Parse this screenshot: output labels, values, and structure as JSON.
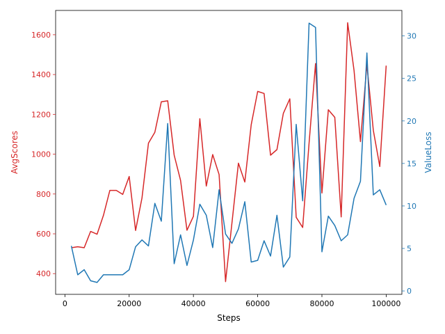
{
  "chart_data": {
    "type": "line",
    "title": "",
    "xlabel": "Steps",
    "ylabel_left": "AvgScores",
    "ylabel_right": "ValueLoss",
    "xlim": [
      -2890,
      104890
    ],
    "ylim_left": [
      296,
      1722
    ],
    "ylim_right": [
      -0.4,
      33.0
    ],
    "x_ticks": [
      0,
      20000,
      40000,
      60000,
      80000,
      100000
    ],
    "x_tick_labels": [
      "0",
      "20000",
      "40000",
      "60000",
      "80000",
      "100000"
    ],
    "y_left_ticks": [
      400,
      600,
      800,
      1000,
      1200,
      1400,
      1600
    ],
    "y_left_tick_labels": [
      "400",
      "600",
      "800",
      "1000",
      "1200",
      "1400",
      "1600"
    ],
    "y_right_ticks": [
      0,
      5,
      10,
      15,
      20,
      25,
      30
    ],
    "y_right_tick_labels": [
      "0",
      "5",
      "10",
      "15",
      "20",
      "25",
      "30"
    ],
    "grid": false,
    "legend": "none",
    "colors": {
      "left": "#d62728",
      "right": "#1f77b4",
      "axis": "#000000"
    },
    "x": [
      2000,
      4000,
      6000,
      8000,
      10000,
      12000,
      14000,
      16000,
      18000,
      20000,
      22000,
      24000,
      26000,
      28000,
      30000,
      32000,
      34000,
      36000,
      38000,
      40000,
      42000,
      44000,
      46000,
      48000,
      50000,
      52000,
      54000,
      56000,
      58000,
      60000,
      62000,
      64000,
      66000,
      68000,
      70000,
      72000,
      74000,
      76000,
      78000,
      80000,
      82000,
      84000,
      86000,
      88000,
      90000,
      92000,
      94000,
      96000,
      98000,
      100000
    ],
    "series": [
      {
        "axis": "left",
        "values": [
          530,
          535,
          530,
          612,
          598,
          693,
          818,
          818,
          798,
          888,
          617,
          780,
          1055,
          1110,
          1263,
          1268,
          995,
          868,
          618,
          688,
          1178,
          840,
          998,
          898,
          360,
          655,
          955,
          860,
          1148,
          1315,
          1305,
          995,
          1023,
          1205,
          1278,
          683,
          632,
          1055,
          1455,
          805,
          1223,
          1185,
          685,
          1660,
          1420,
          1063,
          1450,
          1120,
          938,
          1445
        ]
      },
      {
        "axis": "right",
        "values": [
          5.3,
          1.9,
          2.5,
          1.2,
          1.0,
          1.9,
          1.9,
          1.9,
          1.9,
          2.5,
          5.2,
          6.0,
          5.3,
          10.3,
          8.2,
          19.7,
          3.2,
          6.6,
          3.0,
          6.0,
          10.2,
          8.9,
          5.1,
          11.9,
          6.7,
          5.6,
          7.3,
          10.5,
          3.4,
          3.6,
          5.9,
          4.1,
          8.9,
          2.8,
          4.0,
          19.6,
          10.6,
          31.5,
          31.0,
          4.6,
          8.8,
          7.7,
          5.9,
          6.6,
          10.9,
          12.9,
          28.0,
          11.3,
          11.9,
          10.1
        ]
      }
    ]
  }
}
